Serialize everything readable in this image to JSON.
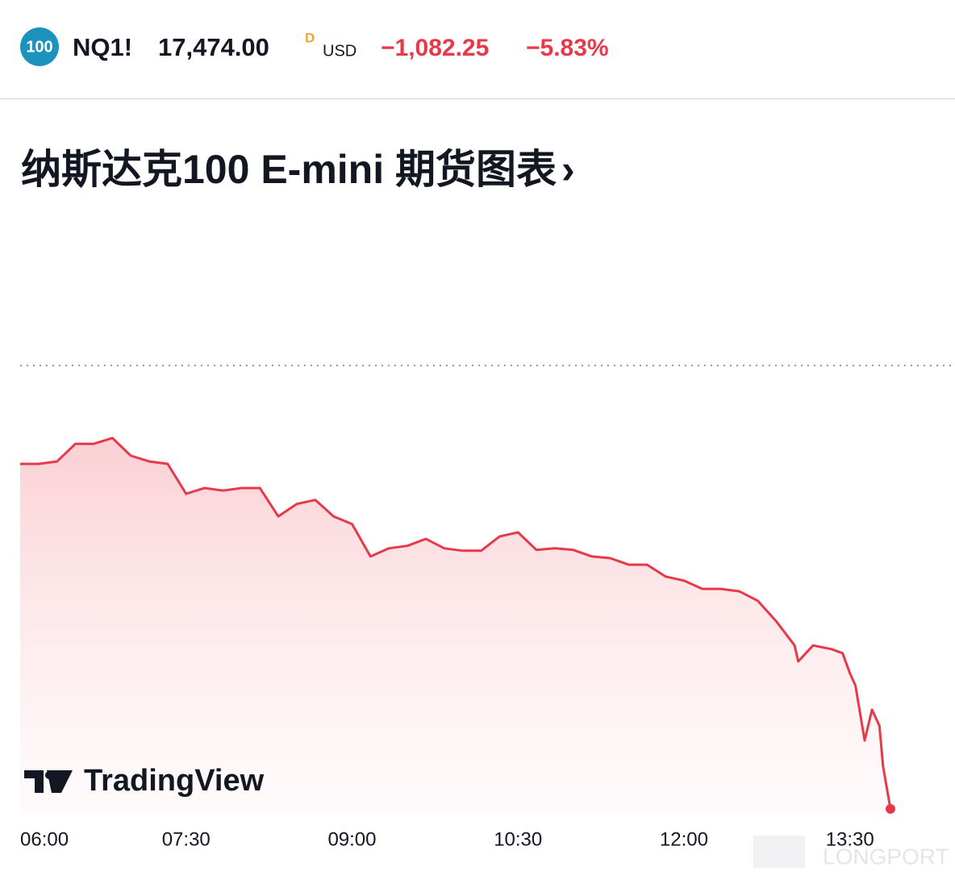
{
  "header": {
    "badge": "100",
    "symbol": "NQ1!",
    "price": "17,474.00",
    "price_flag": "D",
    "currency": "USD",
    "change": "−1,082.25",
    "change_percent": "−5.83%"
  },
  "chart_data": {
    "type": "area",
    "title": "纳斯达克100 E-mini 期货图表",
    "title_arrow": "›",
    "x": [
      360,
      370,
      380,
      390,
      400,
      410,
      420,
      430,
      440,
      450,
      460,
      470,
      480,
      490,
      500,
      510,
      520,
      530,
      540,
      550,
      560,
      570,
      580,
      590,
      600,
      610,
      620,
      630,
      640,
      650,
      660,
      670,
      680,
      690,
      700,
      710,
      720,
      730,
      740,
      750,
      760,
      770,
      780,
      782,
      790,
      800,
      806,
      810,
      813,
      818,
      822,
      826,
      828,
      832
    ],
    "values": [
      18316,
      18316,
      18322,
      18365,
      18365,
      18379,
      18336,
      18322,
      18316,
      18243,
      18257,
      18251,
      18257,
      18257,
      18188,
      18218,
      18228,
      18188,
      18169,
      18090,
      18110,
      18116,
      18133,
      18110,
      18104,
      18104,
      18139,
      18149,
      18106,
      18110,
      18106,
      18090,
      18086,
      18070,
      18070,
      18041,
      18031,
      18011,
      18011,
      18005,
      17982,
      17932,
      17873,
      17834,
      17873,
      17864,
      17854,
      17805,
      17775,
      17641,
      17716,
      17677,
      17578,
      17474
    ],
    "color": "#e8394a",
    "reference_line": 18556.25,
    "xlim": [
      360,
      867
    ],
    "ylim": [
      17460,
      18582
    ],
    "xticks": [
      {
        "value": 360,
        "label": "06:00"
      },
      {
        "value": 450,
        "label": "07:30"
      },
      {
        "value": 540,
        "label": "09:00"
      },
      {
        "value": 630,
        "label": "10:30"
      },
      {
        "value": 720,
        "label": "12:00"
      },
      {
        "value": 810,
        "label": "13:30"
      }
    ],
    "logo_text": "TradingView",
    "watermark": "LONGPORT"
  }
}
